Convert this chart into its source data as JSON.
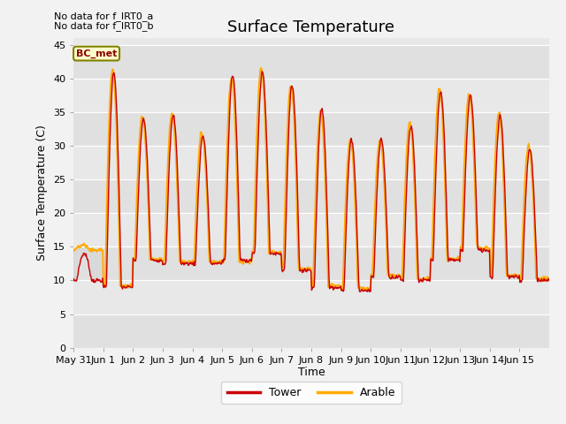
{
  "title": "Surface Temperature",
  "ylabel": "Surface Temperature (C)",
  "xlabel": "Time",
  "annotation_lines": [
    "No data for f_IRT0_a",
    "No data for f_IRT0_b"
  ],
  "bc_met_label": "BC_met",
  "legend_labels": [
    "Tower",
    "Arable"
  ],
  "tower_color": "#cc0000",
  "arable_color": "#ffaa00",
  "fill_color": "#d0d0d0",
  "plot_bg_color": "#e8e8e8",
  "fig_bg_color": "#f2f2f2",
  "ylim": [
    0,
    46
  ],
  "yticks": [
    0,
    5,
    10,
    15,
    20,
    25,
    30,
    35,
    40,
    45
  ],
  "xtick_labels": [
    "May 31",
    "Jun 1",
    "Jun 2",
    "Jun 3",
    "Jun 4",
    "Jun 5",
    "Jun 6",
    "Jun 7",
    "Jun 8",
    "Jun 9",
    "Jun 10",
    "Jun 11",
    "Jun 12",
    "Jun 13",
    "Jun 14",
    "Jun 15"
  ],
  "day_peaks_tower": [
    14.0,
    41.0,
    34.0,
    34.5,
    31.5,
    40.5,
    41.0,
    39.0,
    35.5,
    31.0,
    31.0,
    33.0,
    38.0,
    37.5,
    34.5,
    29.5
  ],
  "day_mins_tower": [
    10.0,
    9.0,
    13.0,
    12.5,
    12.5,
    13.0,
    14.0,
    11.5,
    9.0,
    8.5,
    10.5,
    10.0,
    13.0,
    14.5,
    10.5,
    10.0
  ],
  "day_peaks_arable": [
    15.2,
    41.5,
    34.5,
    34.8,
    32.0,
    40.0,
    41.5,
    39.0,
    35.0,
    31.0,
    31.0,
    33.5,
    38.5,
    37.8,
    34.8,
    30.0
  ],
  "day_mins_arable": [
    14.5,
    9.2,
    13.2,
    12.8,
    12.8,
    12.8,
    14.2,
    11.8,
    9.2,
    8.8,
    10.8,
    10.2,
    13.2,
    14.8,
    10.8,
    10.2
  ],
  "title_fontsize": 13,
  "label_fontsize": 9,
  "tick_fontsize": 8,
  "annot_fontsize": 8,
  "bc_fontsize": 8
}
